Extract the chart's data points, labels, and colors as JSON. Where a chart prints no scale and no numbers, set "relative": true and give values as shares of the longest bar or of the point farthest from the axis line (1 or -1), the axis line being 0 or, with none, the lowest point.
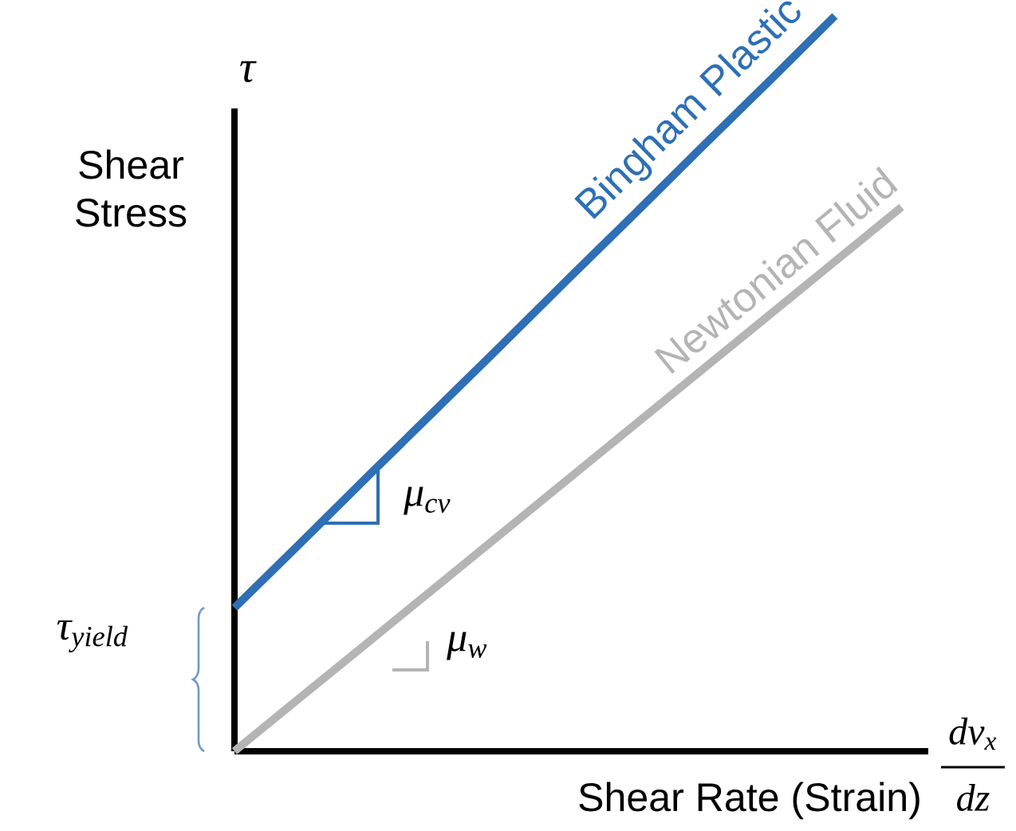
{
  "chart_data": {
    "type": "line",
    "relative": true,
    "xlabel": "Shear Rate (Strain)",
    "ylabel": "Shear Stress",
    "categories": [
      null,
      null,
      null,
      null,
      null,
      null,
      null,
      null,
      null,
      null,
      null
    ],
    "series": [
      {
        "name": "Bingham Plastic",
        "color": "#2e6fb5",
        "values": [
          0.195,
          0.284,
          0.374,
          0.463,
          0.552,
          0.642,
          0.731,
          0.821,
          0.91,
          1.0,
          null
        ]
      },
      {
        "name": "Newtonian Fluid",
        "color": "#b4b4b4",
        "values": [
          0,
          0.074,
          0.148,
          0.222,
          0.296,
          0.37,
          0.444,
          0.518,
          0.592,
          0.666,
          0.74
        ]
      }
    ],
    "annotations": [
      "τ",
      "τ$_{yield}$",
      "μ$_{cv}$",
      "μ$_{w}$",
      "dv$_{x}$",
      "dz"
    ]
  }
}
